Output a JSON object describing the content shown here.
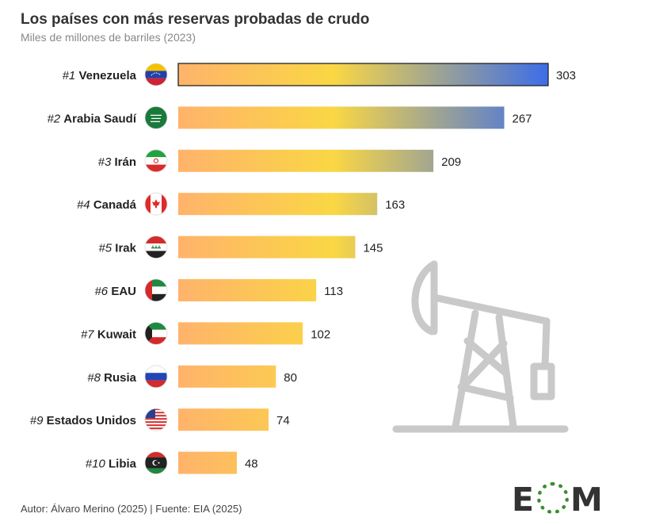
{
  "title": "Los países con más reservas probadas de crudo",
  "subtitle": "Miles de millones de barriles (2023)",
  "footer": "Autor: Álvaro Merino (2025) | Fuente: EIA (2025)",
  "logo": {
    "left": "E",
    "right": "M"
  },
  "colors": {
    "bar_start": "#ffb36b",
    "bar_mid": "#fad744",
    "bar_end": "#3c6de8",
    "text": "#222222",
    "icon": "#c6c6c6"
  },
  "chart_data": {
    "type": "bar",
    "orientation": "horizontal",
    "unit": "Miles de millones de barriles",
    "xlim": [
      0,
      303
    ],
    "grid": false,
    "categories": [
      {
        "rank": "#1",
        "name": "Venezuela",
        "value": 303,
        "flag": "venezuela-flag"
      },
      {
        "rank": "#2",
        "name": "Arabia Saudí",
        "value": 267,
        "flag": "saudi-arabia-flag"
      },
      {
        "rank": "#3",
        "name": "Irán",
        "value": 209,
        "flag": "iran-flag"
      },
      {
        "rank": "#4",
        "name": "Canadá",
        "value": 163,
        "flag": "canada-flag"
      },
      {
        "rank": "#5",
        "name": "Irak",
        "value": 145,
        "flag": "iraq-flag"
      },
      {
        "rank": "#6",
        "name": "EAU",
        "value": 113,
        "flag": "uae-flag"
      },
      {
        "rank": "#7",
        "name": "Kuwait",
        "value": 102,
        "flag": "kuwait-flag"
      },
      {
        "rank": "#8",
        "name": "Rusia",
        "value": 80,
        "flag": "russia-flag"
      },
      {
        "rank": "#9",
        "name": "Estados Unidos",
        "value": 74,
        "flag": "usa-flag"
      },
      {
        "rank": "#10",
        "name": "Libia",
        "value": 48,
        "flag": "libya-flag"
      }
    ]
  }
}
